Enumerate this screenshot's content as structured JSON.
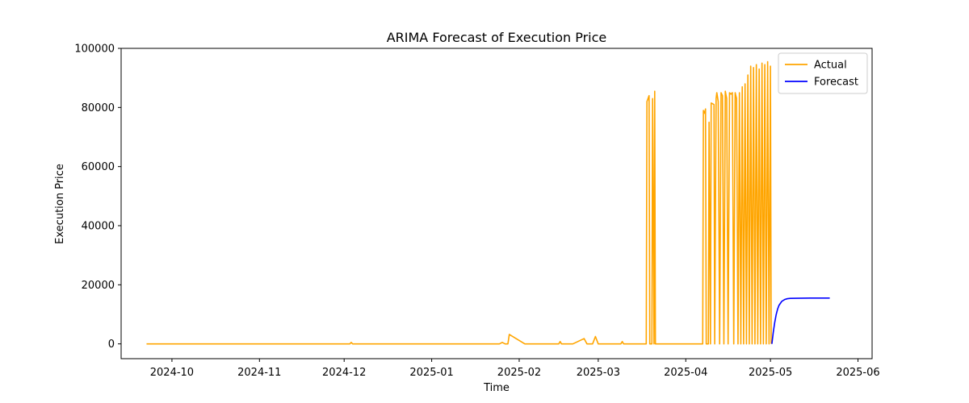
{
  "chart_data": {
    "type": "line",
    "title": "ARIMA Forecast of Execution Price",
    "xlabel": "Time",
    "ylabel": "Execution Price",
    "xlim": [
      "2024-09-13",
      "2025-06-06"
    ],
    "ylim": [
      -5000,
      100000
    ],
    "xticks": [
      "2024-10",
      "2024-11",
      "2024-12",
      "2025-01",
      "2025-02",
      "2025-03",
      "2025-04",
      "2025-05",
      "2025-06"
    ],
    "yticks": [
      0,
      20000,
      40000,
      60000,
      80000,
      100000
    ],
    "legend": "top-right",
    "grid": false,
    "series": [
      {
        "name": "Actual",
        "color": "#ffa500",
        "points": [
          [
            "2024-09-22T00:00",
            0
          ],
          [
            "2024-12-03T00:00",
            0
          ],
          [
            "2024-12-03T12:00",
            500
          ],
          [
            "2024-12-04T00:00",
            0
          ],
          [
            "2025-01-25T00:00",
            0
          ],
          [
            "2025-01-26T00:00",
            500
          ],
          [
            "2025-01-27T00:00",
            0
          ],
          [
            "2025-01-28T00:00",
            0
          ],
          [
            "2025-01-28T12:00",
            3200
          ],
          [
            "2025-02-03T00:00",
            0
          ],
          [
            "2025-02-15T00:00",
            0
          ],
          [
            "2025-02-15T12:00",
            800
          ],
          [
            "2025-02-16T00:00",
            0
          ],
          [
            "2025-02-20T00:00",
            0
          ],
          [
            "2025-02-24T00:00",
            1800
          ],
          [
            "2025-02-25T00:00",
            0
          ],
          [
            "2025-02-27T00:00",
            0
          ],
          [
            "2025-02-28T00:00",
            2500
          ],
          [
            "2025-03-01T00:00",
            0
          ],
          [
            "2025-03-09T00:00",
            0
          ],
          [
            "2025-03-09T12:00",
            800
          ],
          [
            "2025-03-10T00:00",
            0
          ],
          [
            "2025-03-18T00:00",
            0
          ],
          [
            "2025-03-18T06:00",
            82000
          ],
          [
            "2025-03-19T00:00",
            84000
          ],
          [
            "2025-03-19T06:00",
            0
          ],
          [
            "2025-03-20T00:00",
            0
          ],
          [
            "2025-03-20T06:00",
            83000
          ],
          [
            "2025-03-20T18:00",
            0
          ],
          [
            "2025-03-21T00:00",
            85500
          ],
          [
            "2025-03-21T06:00",
            0
          ],
          [
            "2025-04-07T00:00",
            0
          ],
          [
            "2025-04-07T06:00",
            79000
          ],
          [
            "2025-04-07T18:00",
            78000
          ],
          [
            "2025-04-08T00:00",
            79500
          ],
          [
            "2025-04-08T06:00",
            0
          ],
          [
            "2025-04-09T00:00",
            0
          ],
          [
            "2025-04-09T06:00",
            75000
          ],
          [
            "2025-04-09T18:00",
            0
          ],
          [
            "2025-04-10T00:00",
            81500
          ],
          [
            "2025-04-11T00:00",
            81000
          ],
          [
            "2025-04-11T06:00",
            0
          ],
          [
            "2025-04-11T18:00",
            83000
          ],
          [
            "2025-04-12T00:00",
            85000
          ],
          [
            "2025-04-12T12:00",
            82000
          ],
          [
            "2025-04-13T00:00",
            0
          ],
          [
            "2025-04-13T12:00",
            85000
          ],
          [
            "2025-04-14T00:00",
            84000
          ],
          [
            "2025-04-14T12:00",
            0
          ],
          [
            "2025-04-15T00:00",
            85500
          ],
          [
            "2025-04-15T12:00",
            83000
          ],
          [
            "2025-04-16T00:00",
            0
          ],
          [
            "2025-04-16T12:00",
            85000
          ],
          [
            "2025-04-17T00:00",
            84500
          ],
          [
            "2025-04-17T12:00",
            85000
          ],
          [
            "2025-04-18T00:00",
            0
          ],
          [
            "2025-04-18T12:00",
            85000
          ],
          [
            "2025-04-19T00:00",
            83000
          ],
          [
            "2025-04-19T12:00",
            0
          ],
          [
            "2025-04-20T00:00",
            85000
          ],
          [
            "2025-04-20T12:00",
            0
          ],
          [
            "2025-04-21T00:00",
            87000
          ],
          [
            "2025-04-21T12:00",
            0
          ],
          [
            "2025-04-22T00:00",
            88000
          ],
          [
            "2025-04-22T12:00",
            0
          ],
          [
            "2025-04-23T00:00",
            91000
          ],
          [
            "2025-04-23T12:00",
            0
          ],
          [
            "2025-04-24T00:00",
            94000
          ],
          [
            "2025-04-24T12:00",
            0
          ],
          [
            "2025-04-25T00:00",
            93500
          ],
          [
            "2025-04-25T12:00",
            0
          ],
          [
            "2025-04-26T00:00",
            94500
          ],
          [
            "2025-04-26T12:00",
            0
          ],
          [
            "2025-04-27T00:00",
            93000
          ],
          [
            "2025-04-27T12:00",
            0
          ],
          [
            "2025-04-28T00:00",
            95000
          ],
          [
            "2025-04-28T12:00",
            0
          ],
          [
            "2025-04-29T00:00",
            94500
          ],
          [
            "2025-04-29T12:00",
            0
          ],
          [
            "2025-04-30T00:00",
            95500
          ],
          [
            "2025-04-30T12:00",
            0
          ],
          [
            "2025-05-01T00:00",
            94000
          ],
          [
            "2025-05-01T06:00",
            0
          ]
        ]
      },
      {
        "name": "Forecast",
        "color": "#0000ff",
        "points": [
          [
            "2025-05-01T12:00",
            0
          ],
          [
            "2025-05-02T00:00",
            4000
          ],
          [
            "2025-05-02T12:00",
            7200
          ],
          [
            "2025-05-03T00:00",
            9800
          ],
          [
            "2025-05-03T12:00",
            11700
          ],
          [
            "2025-05-04T00:00",
            13000
          ],
          [
            "2025-05-05T00:00",
            14400
          ],
          [
            "2025-05-06T00:00",
            15000
          ],
          [
            "2025-05-07T00:00",
            15300
          ],
          [
            "2025-05-08T00:00",
            15400
          ],
          [
            "2025-05-10T00:00",
            15450
          ],
          [
            "2025-05-15T00:00",
            15500
          ],
          [
            "2025-05-22T00:00",
            15500
          ]
        ]
      }
    ]
  }
}
